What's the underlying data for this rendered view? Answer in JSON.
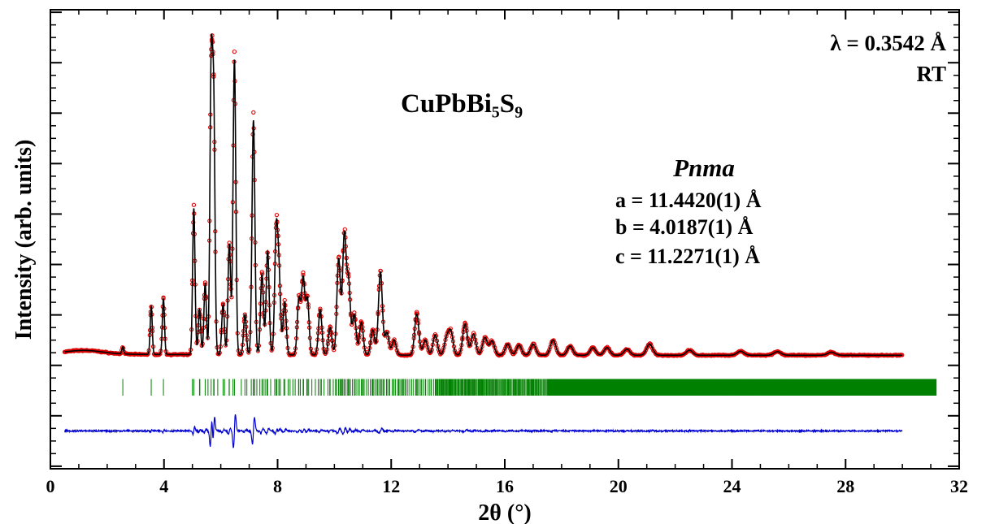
{
  "chart_data": {
    "type": "scatter",
    "title": "",
    "xlabel": "2θ (°)",
    "ylabel": "Intensity (arb. units)",
    "xlim": [
      0,
      32
    ],
    "x_ticks": [
      "0",
      "4",
      "8",
      "12",
      "16",
      "20",
      "24",
      "28",
      "32"
    ],
    "ylim": [
      -2.05,
      7.05
    ],
    "y_tick_labels_shown": false,
    "grid": false,
    "legend": "none",
    "baseline": 0.2,
    "diff_offset": -1.3,
    "x_range_measured": [
      0.5,
      30.0
    ],
    "x_range_reflections": [
      2.5,
      31.2
    ],
    "series": [
      {
        "kind": "observed",
        "marker": "open-circle",
        "color": "#e00000",
        "peaks": [
          {
            "x": 2.55,
            "h": 0.14
          },
          {
            "x": 3.55,
            "h": 0.95
          },
          {
            "x": 3.98,
            "h": 1.1
          },
          {
            "x": 5.05,
            "h": 2.9
          },
          {
            "x": 5.25,
            "h": 0.9
          },
          {
            "x": 5.45,
            "h": 1.4
          },
          {
            "x": 5.66,
            "h": 5.45
          },
          {
            "x": 5.75,
            "h": 4.8
          },
          {
            "x": 6.08,
            "h": 1.0
          },
          {
            "x": 6.3,
            "h": 2.2
          },
          {
            "x": 6.48,
            "h": 5.85
          },
          {
            "x": 6.85,
            "h": 0.8
          },
          {
            "x": 7.15,
            "h": 4.65
          },
          {
            "x": 7.45,
            "h": 1.6
          },
          {
            "x": 7.65,
            "h": 2.05
          },
          {
            "x": 7.95,
            "h": 2.35
          },
          {
            "x": 8.05,
            "h": 1.5
          },
          {
            "x": 8.25,
            "h": 1.05
          },
          {
            "x": 8.75,
            "h": 1.1
          },
          {
            "x": 8.9,
            "h": 1.5
          },
          {
            "x": 9.05,
            "h": 1.1
          },
          {
            "x": 9.5,
            "h": 0.9
          },
          {
            "x": 9.85,
            "h": 0.55
          },
          {
            "x": 10.15,
            "h": 1.9
          },
          {
            "x": 10.35,
            "h": 2.35
          },
          {
            "x": 10.5,
            "h": 1.4
          },
          {
            "x": 10.7,
            "h": 0.8
          },
          {
            "x": 10.95,
            "h": 0.65
          },
          {
            "x": 11.35,
            "h": 0.5
          },
          {
            "x": 11.62,
            "h": 1.65
          },
          {
            "x": 11.85,
            "h": 0.45
          },
          {
            "x": 12.1,
            "h": 0.3
          },
          {
            "x": 12.9,
            "h": 0.82
          },
          {
            "x": 13.2,
            "h": 0.3
          },
          {
            "x": 13.55,
            "h": 0.4
          },
          {
            "x": 13.95,
            "h": 0.32
          },
          {
            "x": 14.1,
            "h": 0.45
          },
          {
            "x": 14.6,
            "h": 0.62
          },
          {
            "x": 14.9,
            "h": 0.42
          },
          {
            "x": 15.3,
            "h": 0.35
          },
          {
            "x": 15.55,
            "h": 0.28
          },
          {
            "x": 16.1,
            "h": 0.22
          },
          {
            "x": 16.5,
            "h": 0.2
          },
          {
            "x": 17.0,
            "h": 0.22
          },
          {
            "x": 17.7,
            "h": 0.3
          },
          {
            "x": 18.3,
            "h": 0.18
          },
          {
            "x": 19.1,
            "h": 0.15
          },
          {
            "x": 19.6,
            "h": 0.15
          },
          {
            "x": 20.3,
            "h": 0.12
          },
          {
            "x": 21.1,
            "h": 0.22
          },
          {
            "x": 22.5,
            "h": 0.1
          },
          {
            "x": 24.3,
            "h": 0.08
          },
          {
            "x": 25.6,
            "h": 0.07
          },
          {
            "x": 27.5,
            "h": 0.06
          }
        ]
      },
      {
        "kind": "calculated",
        "marker": "line",
        "color": "#000000"
      },
      {
        "kind": "bragg-reflections",
        "marker": "vertical-tick",
        "color": "#008000"
      },
      {
        "kind": "difference",
        "marker": "line",
        "color": "#0000d0"
      }
    ],
    "annotations": {
      "wavelength": "λ = 0.3542 Å",
      "temperature": "RT",
      "formula": "CuPbBi₅S₉",
      "space_group": "Pnma",
      "a_line": "a = 11.4420(1) Å",
      "b_line": "b = 4.0187(1) Å",
      "c_line": "c = 11.2271(1) Å"
    }
  }
}
